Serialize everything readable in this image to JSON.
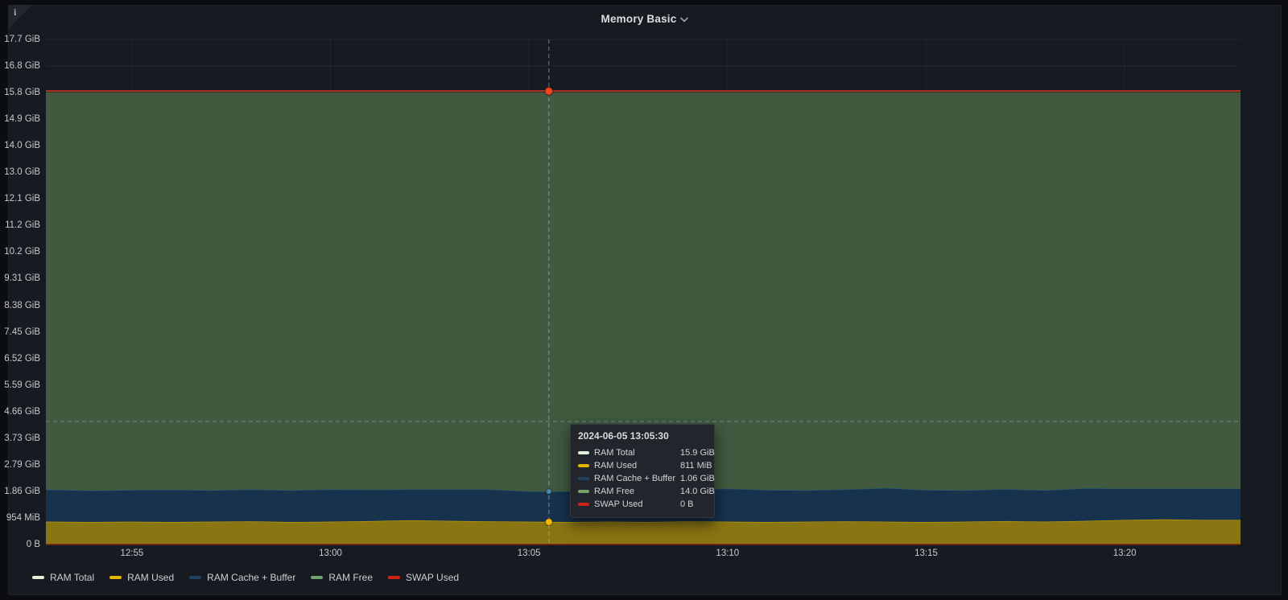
{
  "panel": {
    "title": "Memory Basic",
    "info_icon": "i"
  },
  "chart_data": {
    "type": "area",
    "stacked": true,
    "title": "Memory Basic",
    "xlabel": "",
    "ylabel": "",
    "grid": true,
    "legend_position": "bottom-left",
    "x_domain": [
      "12:52:50",
      "13:22:55"
    ],
    "x_ticks": [
      "12:55",
      "13:00",
      "13:05",
      "13:10",
      "13:15",
      "13:20"
    ],
    "ylim": [
      0,
      17.706
    ],
    "y_ticks": [
      {
        "label": "0 B",
        "gib": 0
      },
      {
        "label": "954 MiB",
        "gib": 0.932
      },
      {
        "label": "1.86 GiB",
        "gib": 1.864
      },
      {
        "label": "2.79 GiB",
        "gib": 2.796
      },
      {
        "label": "3.73 GiB",
        "gib": 3.727
      },
      {
        "label": "4.66 GiB",
        "gib": 4.659
      },
      {
        "label": "5.59 GiB",
        "gib": 5.591
      },
      {
        "label": "6.52 GiB",
        "gib": 6.523
      },
      {
        "label": "7.45 GiB",
        "gib": 7.455
      },
      {
        "label": "8.38 GiB",
        "gib": 8.387
      },
      {
        "label": "9.31 GiB",
        "gib": 9.319
      },
      {
        "label": "10.2 GiB",
        "gib": 10.251
      },
      {
        "label": "11.2 GiB",
        "gib": 11.183
      },
      {
        "label": "12.1 GiB",
        "gib": 12.115
      },
      {
        "label": "13.0 GiB",
        "gib": 13.046
      },
      {
        "label": "14.0 GiB",
        "gib": 13.978
      },
      {
        "label": "14.9 GiB",
        "gib": 14.91
      },
      {
        "label": "15.8 GiB",
        "gib": 15.842
      },
      {
        "label": "16.8 GiB",
        "gib": 16.774
      },
      {
        "label": "17.7 GiB",
        "gib": 17.706
      }
    ],
    "x": [
      "12:52:50",
      "12:53",
      "12:54",
      "12:55",
      "12:56",
      "12:57",
      "12:58",
      "12:59",
      "13:00",
      "13:01",
      "13:02",
      "13:03",
      "13:04",
      "13:05",
      "13:06",
      "13:07",
      "13:08",
      "13:09",
      "13:10",
      "13:11",
      "13:12",
      "13:13",
      "13:14",
      "13:15",
      "13:16",
      "13:17",
      "13:18",
      "13:19",
      "13:20",
      "13:21",
      "13:22",
      "13:22:55"
    ],
    "series": [
      {
        "name": "RAM Used",
        "render": "area",
        "fill": "#8a7513",
        "edge": "#d2aa08",
        "values": [
          0.8,
          0.8,
          0.79,
          0.8,
          0.79,
          0.8,
          0.81,
          0.79,
          0.8,
          0.82,
          0.85,
          0.83,
          0.81,
          0.8,
          0.79,
          0.8,
          0.79,
          0.81,
          0.8,
          0.79,
          0.8,
          0.81,
          0.8,
          0.79,
          0.8,
          0.82,
          0.8,
          0.83,
          0.86,
          0.88,
          0.86,
          0.86
        ]
      },
      {
        "name": "RAM Cache + Buffer",
        "render": "area",
        "fill": "#16324d",
        "edge": "#27567f",
        "values": [
          1.12,
          1.12,
          1.1,
          1.11,
          1.13,
          1.1,
          1.12,
          1.11,
          1.13,
          1.1,
          1.08,
          1.1,
          1.12,
          1.06,
          1.07,
          1.12,
          1.14,
          1.11,
          1.16,
          1.12,
          1.1,
          1.12,
          1.18,
          1.12,
          1.1,
          1.12,
          1.1,
          1.14,
          1.1,
          1.08,
          1.1,
          1.1
        ]
      },
      {
        "name": "RAM Free",
        "render": "area",
        "fill": "#40593f",
        "edge": "",
        "values": [
          13.93,
          13.93,
          13.96,
          13.94,
          13.93,
          13.95,
          13.92,
          13.95,
          13.92,
          13.93,
          13.92,
          13.92,
          13.92,
          13.99,
          13.99,
          13.93,
          13.92,
          13.93,
          13.89,
          13.94,
          13.95,
          13.92,
          13.87,
          13.94,
          13.95,
          13.91,
          13.95,
          13.88,
          13.89,
          13.89,
          13.89,
          13.89
        ]
      },
      {
        "name": "RAM Total",
        "render": "line",
        "color": "#b5352b",
        "width": 2,
        "values_const": 15.9
      },
      {
        "name": "SWAP Used",
        "render": "line",
        "color": "#7a1d14",
        "width": 1.5,
        "values_const": 0
      }
    ]
  },
  "crosshair": {
    "x_time": "13:05:30",
    "y_value_gib": 4.31,
    "dots": [
      {
        "series": "RAM Total",
        "value_gib": 15.89,
        "color": "#f0431f",
        "r": 5
      },
      {
        "series": "RAM Cache + Buffer",
        "value_gib": 1.86,
        "color": "#4a87a8",
        "r": 3.5
      },
      {
        "series": "RAM Used",
        "value_gib": 0.79,
        "color": "#f2b800",
        "r": 4.5
      }
    ]
  },
  "tooltip": {
    "header": "2024-06-05 13:05:30",
    "rows": [
      {
        "label": "RAM Total",
        "value": "15.9 GiB",
        "color": "#dff2d8"
      },
      {
        "label": "RAM Used",
        "value": "811 MiB",
        "color": "#e3b400"
      },
      {
        "label": "RAM Cache + Buffer",
        "value": "1.06 GiB",
        "color": "#20415f"
      },
      {
        "label": "RAM Free",
        "value": "14.0 GiB",
        "color": "#73a36c"
      },
      {
        "label": "SWAP Used",
        "value": "0 B",
        "color": "#cf2318"
      }
    ]
  },
  "legend": {
    "items": [
      {
        "label": "RAM Total",
        "color": "#dff2d8"
      },
      {
        "label": "RAM Used",
        "color": "#e3b400"
      },
      {
        "label": "RAM Cache + Buffer",
        "color": "#20415f"
      },
      {
        "label": "RAM Free",
        "color": "#73a36c"
      },
      {
        "label": "SWAP Used",
        "color": "#cf2318"
      }
    ]
  }
}
